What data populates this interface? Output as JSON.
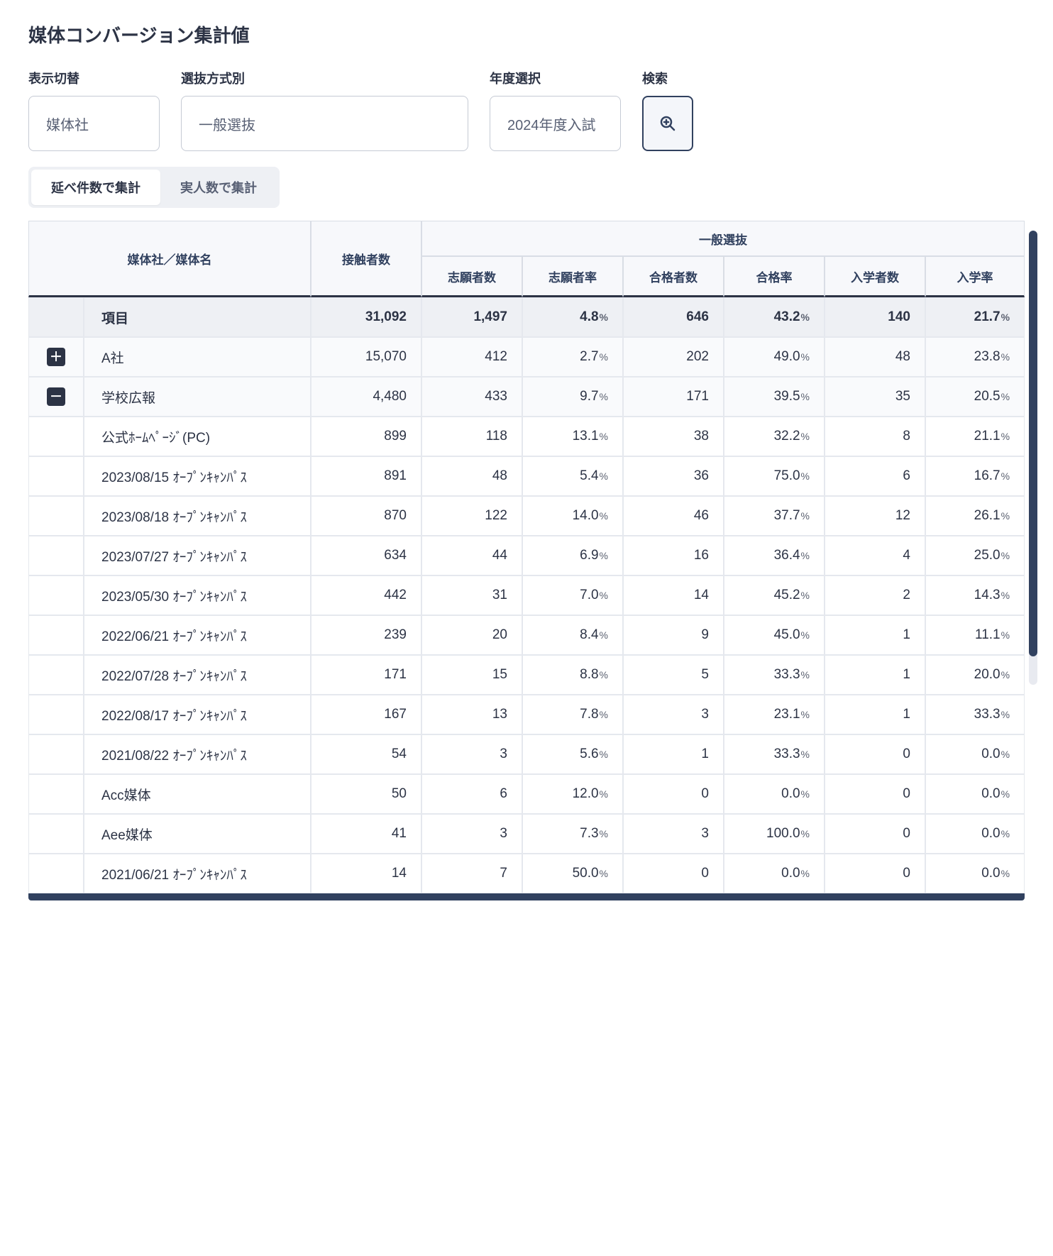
{
  "page": {
    "title": "媒体コンバージョン集計値"
  },
  "filters": {
    "display_switch": {
      "label": "表示切替",
      "value": "媒体社"
    },
    "selection": {
      "label": "選抜方式別",
      "value": "一般選抜"
    },
    "year": {
      "label": "年度選択",
      "value": "2024年度入試"
    },
    "search": {
      "label": "検索"
    }
  },
  "tabs": {
    "t0": "延べ件数で集計",
    "t1": "実人数で集計",
    "active": 0
  },
  "table": {
    "headers": {
      "name": "媒体社／媒体名",
      "contacts": "接触者数",
      "group": "一般選抜",
      "applicants": "志願者数",
      "app_rate": "志願者率",
      "passed": "合格者数",
      "pass_rate": "合格率",
      "entrants": "入学者数",
      "entry_rate": "入学率"
    },
    "col_widths": {
      "exp": 78,
      "name": 320,
      "contacts": 150,
      "data": 130,
      "rate": 120
    },
    "rows": [
      {
        "kind": "summary",
        "expand": "",
        "name": "項目",
        "contacts": "31,092",
        "applicants": "1,497",
        "app_rate": "4.8",
        "passed": "646",
        "pass_rate": "43.2",
        "entrants": "140",
        "entry_rate": "21.7"
      },
      {
        "kind": "group",
        "expand": "+",
        "name": "A社",
        "contacts": "15,070",
        "applicants": "412",
        "app_rate": "2.7",
        "passed": "202",
        "pass_rate": "49.0",
        "entrants": "48",
        "entry_rate": "23.8"
      },
      {
        "kind": "group",
        "expand": "-",
        "name": "学校広報",
        "contacts": "4,480",
        "applicants": "433",
        "app_rate": "9.7",
        "passed": "171",
        "pass_rate": "39.5",
        "entrants": "35",
        "entry_rate": "20.5"
      },
      {
        "kind": "leaf",
        "expand": "",
        "name": "公式ﾎｰﾑﾍﾟｰｼﾞ(PC)",
        "contacts": "899",
        "applicants": "118",
        "app_rate": "13.1",
        "passed": "38",
        "pass_rate": "32.2",
        "entrants": "8",
        "entry_rate": "21.1"
      },
      {
        "kind": "leaf",
        "expand": "",
        "name": "2023/08/15 ｵｰﾌﾟﾝｷｬﾝﾊﾟｽ",
        "contacts": "891",
        "applicants": "48",
        "app_rate": "5.4",
        "passed": "36",
        "pass_rate": "75.0",
        "entrants": "6",
        "entry_rate": "16.7"
      },
      {
        "kind": "leaf",
        "expand": "",
        "name": "2023/08/18 ｵｰﾌﾟﾝｷｬﾝﾊﾟｽ",
        "contacts": "870",
        "applicants": "122",
        "app_rate": "14.0",
        "passed": "46",
        "pass_rate": "37.7",
        "entrants": "12",
        "entry_rate": "26.1"
      },
      {
        "kind": "leaf",
        "expand": "",
        "name": "2023/07/27 ｵｰﾌﾟﾝｷｬﾝﾊﾟｽ",
        "contacts": "634",
        "applicants": "44",
        "app_rate": "6.9",
        "passed": "16",
        "pass_rate": "36.4",
        "entrants": "4",
        "entry_rate": "25.0"
      },
      {
        "kind": "leaf",
        "expand": "",
        "name": "2023/05/30 ｵｰﾌﾟﾝｷｬﾝﾊﾟｽ",
        "contacts": "442",
        "applicants": "31",
        "app_rate": "7.0",
        "passed": "14",
        "pass_rate": "45.2",
        "entrants": "2",
        "entry_rate": "14.3"
      },
      {
        "kind": "leaf",
        "expand": "",
        "name": "2022/06/21 ｵｰﾌﾟﾝｷｬﾝﾊﾟｽ",
        "contacts": "239",
        "applicants": "20",
        "app_rate": "8.4",
        "passed": "9",
        "pass_rate": "45.0",
        "entrants": "1",
        "entry_rate": "11.1"
      },
      {
        "kind": "leaf",
        "expand": "",
        "name": "2022/07/28 ｵｰﾌﾟﾝｷｬﾝﾊﾟｽ",
        "contacts": "171",
        "applicants": "15",
        "app_rate": "8.8",
        "passed": "5",
        "pass_rate": "33.3",
        "entrants": "1",
        "entry_rate": "20.0"
      },
      {
        "kind": "leaf",
        "expand": "",
        "name": "2022/08/17 ｵｰﾌﾟﾝｷｬﾝﾊﾟｽ",
        "contacts": "167",
        "applicants": "13",
        "app_rate": "7.8",
        "passed": "3",
        "pass_rate": "23.1",
        "entrants": "1",
        "entry_rate": "33.3"
      },
      {
        "kind": "leaf",
        "expand": "",
        "name": "2021/08/22 ｵｰﾌﾟﾝｷｬﾝﾊﾟｽ",
        "contacts": "54",
        "applicants": "3",
        "app_rate": "5.6",
        "passed": "1",
        "pass_rate": "33.3",
        "entrants": "0",
        "entry_rate": "0.0"
      },
      {
        "kind": "leaf",
        "expand": "",
        "name": "Acc媒体",
        "contacts": "50",
        "applicants": "6",
        "app_rate": "12.0",
        "passed": "0",
        "pass_rate": "0.0",
        "entrants": "0",
        "entry_rate": "0.0"
      },
      {
        "kind": "leaf",
        "expand": "",
        "name": "Aee媒体",
        "contacts": "41",
        "applicants": "3",
        "app_rate": "7.3",
        "passed": "3",
        "pass_rate": "100.0",
        "entrants": "0",
        "entry_rate": "0.0"
      },
      {
        "kind": "leaf",
        "expand": "",
        "name": "2021/06/21 ｵｰﾌﾟﾝｷｬﾝﾊﾟｽ",
        "contacts": "14",
        "applicants": "7",
        "app_rate": "50.0",
        "passed": "0",
        "pass_rate": "0.0",
        "entrants": "0",
        "entry_rate": "0.0"
      }
    ]
  },
  "colors": {
    "text": "#2c3345",
    "accent": "#31415f",
    "border": "#d9dde5",
    "header_bg": "#f7f8fb",
    "summary_bg": "#eef0f4"
  }
}
